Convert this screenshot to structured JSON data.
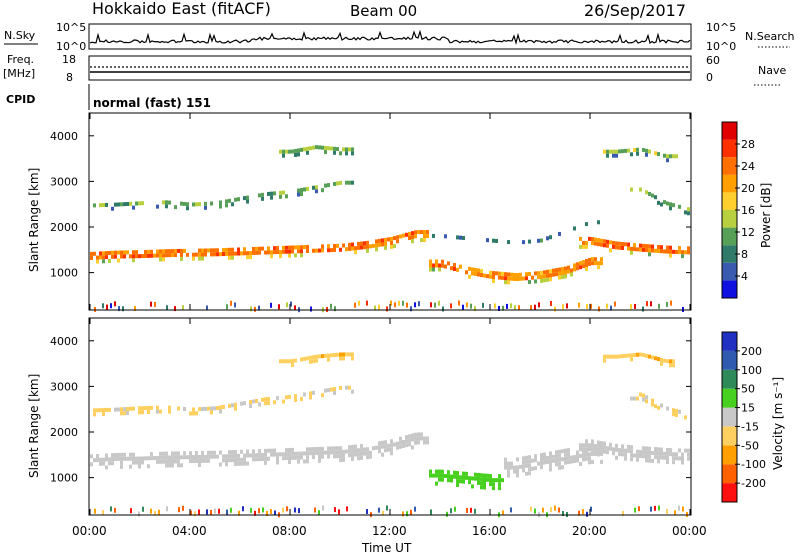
{
  "header": {
    "station": "Hokkaido East (fitACF)",
    "beam": "Beam 00",
    "date": "26/Sep/2017"
  },
  "top_labels": {
    "nsky": "N.Sky",
    "freq": "Freq.",
    "freq_unit": "[MHz]",
    "cpid": "CPID",
    "nsearch": "N.Search",
    "nave": "Nave",
    "cpid_value": "normal (fast) 151",
    "nsky_ticks": [
      "10^5",
      "10^0"
    ],
    "freq_ticks": [
      "18",
      "8"
    ],
    "nsearch_ticks": [
      "10^5",
      "10^0"
    ],
    "nave_ticks": [
      "60",
      "0"
    ]
  },
  "colors": {
    "power": [
      "#1010e0",
      "#3a5ab0",
      "#2f7a68",
      "#58a058",
      "#b8d040",
      "#ffcf30",
      "#ffa000",
      "#ff7000",
      "#ff3000",
      "#e00000"
    ],
    "velocity": [
      "#ff1010",
      "#ff6000",
      "#ffa000",
      "#ffd060",
      "#c8c8c8",
      "#48d020",
      "#2f8a5a",
      "#2f5ab0",
      "#2030c0"
    ]
  },
  "chart_data": [
    {
      "type": "heatmap",
      "panel": "power",
      "ylabel": "Slant Range [km]",
      "ylim": [
        180,
        4500
      ],
      "yticks": [
        1000,
        2000,
        3000,
        4000
      ],
      "colorbar_label": "Power [dB]",
      "colorbar_ticks": [
        "28",
        "24",
        "20",
        "16",
        "12",
        "8",
        "4"
      ],
      "colorbar_range": [
        0,
        30
      ],
      "x_hours": [
        0,
        1,
        2,
        3,
        4,
        5,
        6,
        7,
        8,
        9,
        10,
        11,
        12,
        13,
        14,
        15,
        16,
        17,
        18,
        19,
        20,
        21,
        22,
        23,
        24
      ],
      "echo_bands": [
        {
          "center_km": [
            1320,
            1350,
            1360,
            1380,
            1390,
            1400,
            1420,
            1440,
            1460,
            1480,
            1500,
            1560,
            1650,
            1800,
            null,
            null,
            null,
            null,
            null,
            null,
            1650,
            1550,
            1500,
            1460,
            1440
          ],
          "width_km": 260,
          "power_db": 26
        },
        {
          "center_km": [
            2400,
            2420,
            2450,
            2470,
            2420,
            2450,
            2550,
            2650,
            2700,
            2800,
            2900,
            null,
            null,
            null,
            null,
            null,
            null,
            null,
            null,
            null,
            null,
            null,
            2750,
            2450,
            2300
          ],
          "width_km": 120,
          "power_db": 14
        },
        {
          "center_km": [
            null,
            null,
            null,
            null,
            null,
            null,
            null,
            null,
            3600,
            3700,
            3650,
            null,
            null,
            null,
            null,
            null,
            null,
            null,
            null,
            null,
            null,
            3600,
            3650,
            3500,
            null
          ],
          "width_km": 160,
          "power_db": 13
        },
        {
          "center_km": [
            null,
            null,
            null,
            null,
            null,
            null,
            null,
            null,
            null,
            null,
            null,
            null,
            null,
            null,
            1150,
            1000,
            900,
            850,
            900,
            1000,
            1200,
            null,
            null,
            null,
            null
          ],
          "width_km": 250,
          "power_db": 25
        },
        {
          "center_km": [
            null,
            null,
            null,
            null,
            null,
            null,
            null,
            null,
            null,
            null,
            null,
            null,
            null,
            null,
            1800,
            1750,
            1700,
            1650,
            1700,
            1900,
            2100,
            null,
            null,
            null,
            null
          ],
          "width_km": 80,
          "power_db": 13
        }
      ]
    },
    {
      "type": "heatmap",
      "panel": "velocity",
      "xlabel": "Time UT",
      "ylabel": "Slant Range [km]",
      "ylim": [
        180,
        4500
      ],
      "yticks": [
        1000,
        2000,
        3000,
        4000
      ],
      "xticks": [
        "00:00",
        "04:00",
        "08:00",
        "12:00",
        "16:00",
        "20:00",
        "00:00"
      ],
      "colorbar_label": "Velocity [m s⁻¹]",
      "colorbar_ticks": [
        "200",
        "100",
        "50",
        "15",
        "-15",
        "-50",
        "-100",
        "-200"
      ],
      "colorbar_range": [
        -250,
        250
      ],
      "x_hours": [
        0,
        1,
        2,
        3,
        4,
        5,
        6,
        7,
        8,
        9,
        10,
        11,
        12,
        13,
        14,
        15,
        16,
        17,
        18,
        19,
        20,
        21,
        22,
        23,
        24
      ],
      "echo_bands": [
        {
          "center_km": [
            1320,
            1350,
            1360,
            1380,
            1390,
            1400,
            1420,
            1440,
            1460,
            1480,
            1500,
            1560,
            1650,
            1800,
            null,
            null,
            null,
            null,
            null,
            null,
            1650,
            1550,
            1500,
            1460,
            1440
          ],
          "width_km": 320,
          "velocity_ms": 0
        },
        {
          "center_km": [
            2400,
            2420,
            2450,
            2470,
            2420,
            2450,
            2550,
            2650,
            2700,
            2800,
            2900,
            null,
            null,
            null,
            null,
            null,
            null,
            null,
            null,
            null,
            null,
            null,
            2750,
            2450,
            2300
          ],
          "width_km": 120,
          "velocity_ms": -20
        },
        {
          "center_km": [
            null,
            null,
            null,
            null,
            null,
            null,
            null,
            null,
            3500,
            3600,
            3650,
            null,
            null,
            null,
            null,
            null,
            null,
            null,
            null,
            null,
            null,
            3600,
            3650,
            3500,
            null
          ],
          "width_km": 160,
          "velocity_ms": -40
        },
        {
          "center_km": [
            null,
            null,
            null,
            null,
            null,
            null,
            null,
            null,
            null,
            null,
            null,
            null,
            null,
            null,
            1000,
            950,
            900,
            null,
            null,
            null,
            null,
            null,
            null,
            null,
            null
          ],
          "width_km": 350,
          "velocity_ms": 30
        },
        {
          "center_km": [
            null,
            null,
            null,
            null,
            null,
            null,
            null,
            null,
            null,
            null,
            null,
            null,
            null,
            null,
            null,
            null,
            null,
            1200,
            1300,
            1400,
            1500,
            null,
            null,
            null,
            null
          ],
          "width_km": 400,
          "velocity_ms": 0
        }
      ]
    }
  ]
}
